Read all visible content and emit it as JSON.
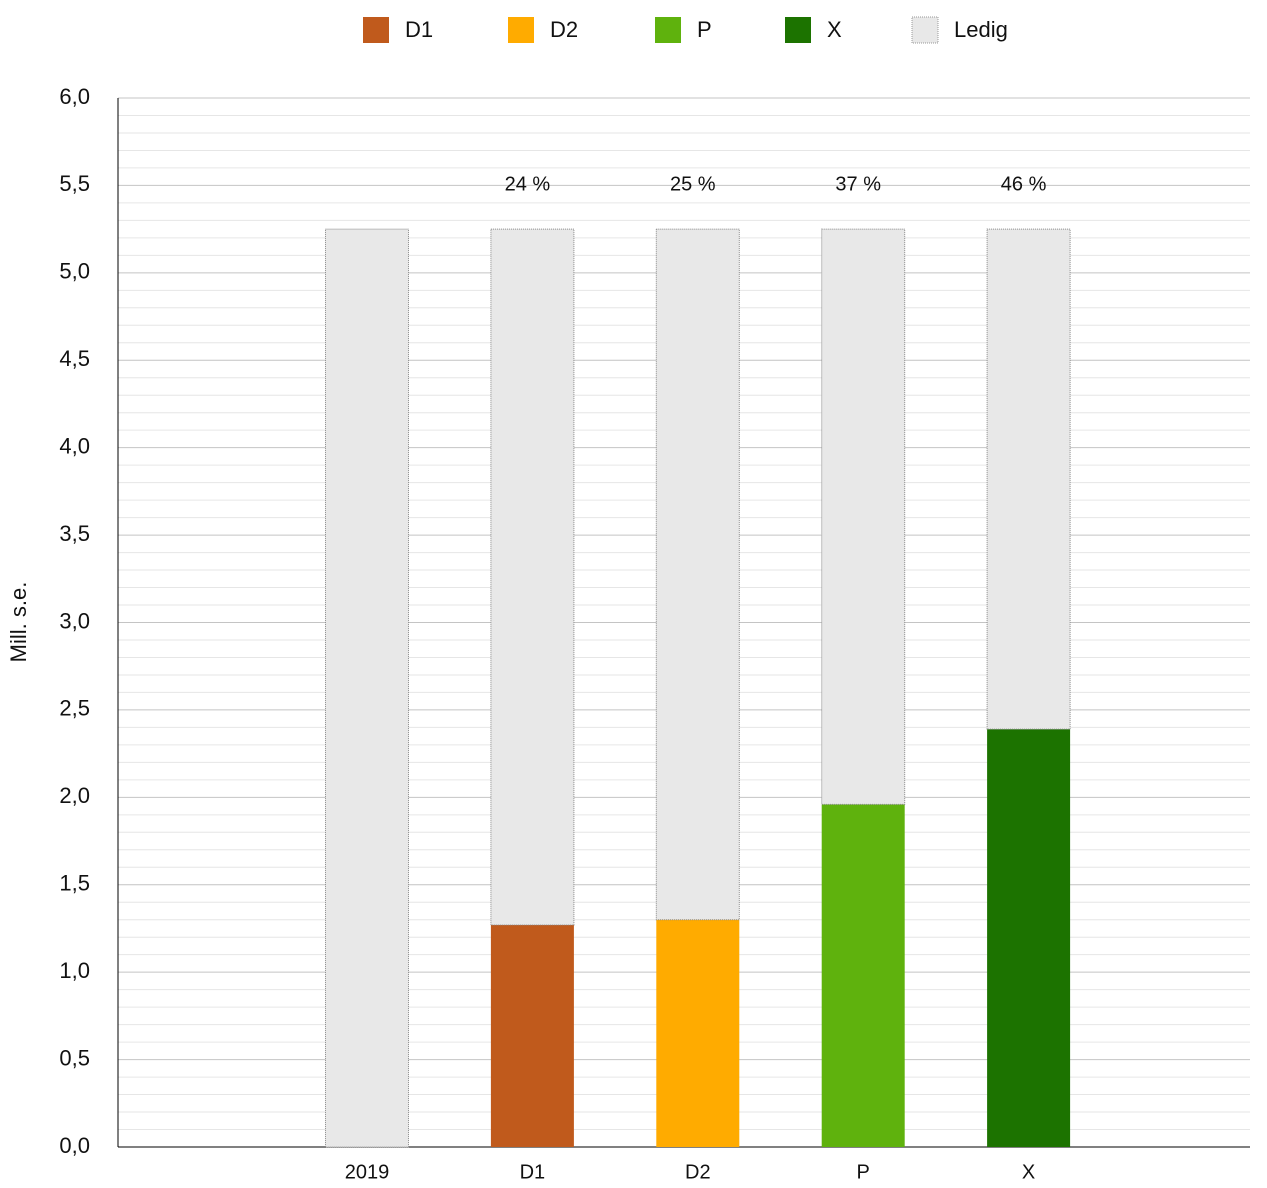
{
  "chart_data": {
    "type": "stacked_bar",
    "y_label": "Mill. s.e.",
    "categories": [
      "2019",
      "D1",
      "D2",
      "P",
      "X"
    ],
    "series": [
      {
        "name": "D1",
        "color": "#c05a1c",
        "values": [
          null,
          1.27,
          null,
          null,
          null
        ]
      },
      {
        "name": "D2",
        "color": "#ffab00",
        "values": [
          null,
          null,
          1.3,
          null,
          null
        ]
      },
      {
        "name": "P",
        "color": "#5fb20d",
        "values": [
          null,
          null,
          null,
          1.96,
          null
        ]
      },
      {
        "name": "X",
        "color": "#1c7300",
        "values": [
          null,
          null,
          null,
          null,
          2.39
        ]
      },
      {
        "name": "Ledig",
        "color": "#e8e8e8",
        "values": [
          5.25,
          3.98,
          3.95,
          3.29,
          2.86
        ]
      }
    ],
    "share_labels": [
      null,
      "24 %",
      "25 %",
      "37 %",
      "46 %"
    ],
    "ylim": [
      0,
      6
    ],
    "yticks": [
      {
        "value": 0,
        "label": "0,0"
      },
      {
        "value": 0.5,
        "label": "0,5"
      },
      {
        "value": 1,
        "label": "1,0"
      },
      {
        "value": 1.5,
        "label": "1,5"
      },
      {
        "value": 2,
        "label": "2,0"
      },
      {
        "value": 2.5,
        "label": "2,5"
      },
      {
        "value": 3,
        "label": "3,0"
      },
      {
        "value": 3.5,
        "label": "3,5"
      },
      {
        "value": 4,
        "label": "4,0"
      },
      {
        "value": 4.5,
        "label": "4,5"
      },
      {
        "value": 5,
        "label": "5,0"
      },
      {
        "value": 5.5,
        "label": "5,5"
      },
      {
        "value": 6,
        "label": "6,0"
      }
    ],
    "minor_yticks": [
      0.1,
      0.2,
      0.3,
      0.4,
      0.6,
      0.7,
      0.8,
      0.9,
      1.1,
      1.2,
      1.3,
      1.4,
      1.6,
      1.7,
      1.8,
      1.9,
      2.1,
      2.2,
      2.3,
      2.4,
      2.6,
      2.7,
      2.8,
      2.9,
      3.1,
      3.2,
      3.3,
      3.4,
      3.6,
      3.7,
      3.8,
      3.9,
      4.1,
      4.2,
      4.3,
      4.4,
      4.6,
      4.7,
      4.8,
      4.9,
      5.1,
      5.2,
      5.3,
      5.4,
      5.6,
      5.7,
      5.8,
      5.9
    ],
    "grid": true,
    "legend": "top"
  }
}
